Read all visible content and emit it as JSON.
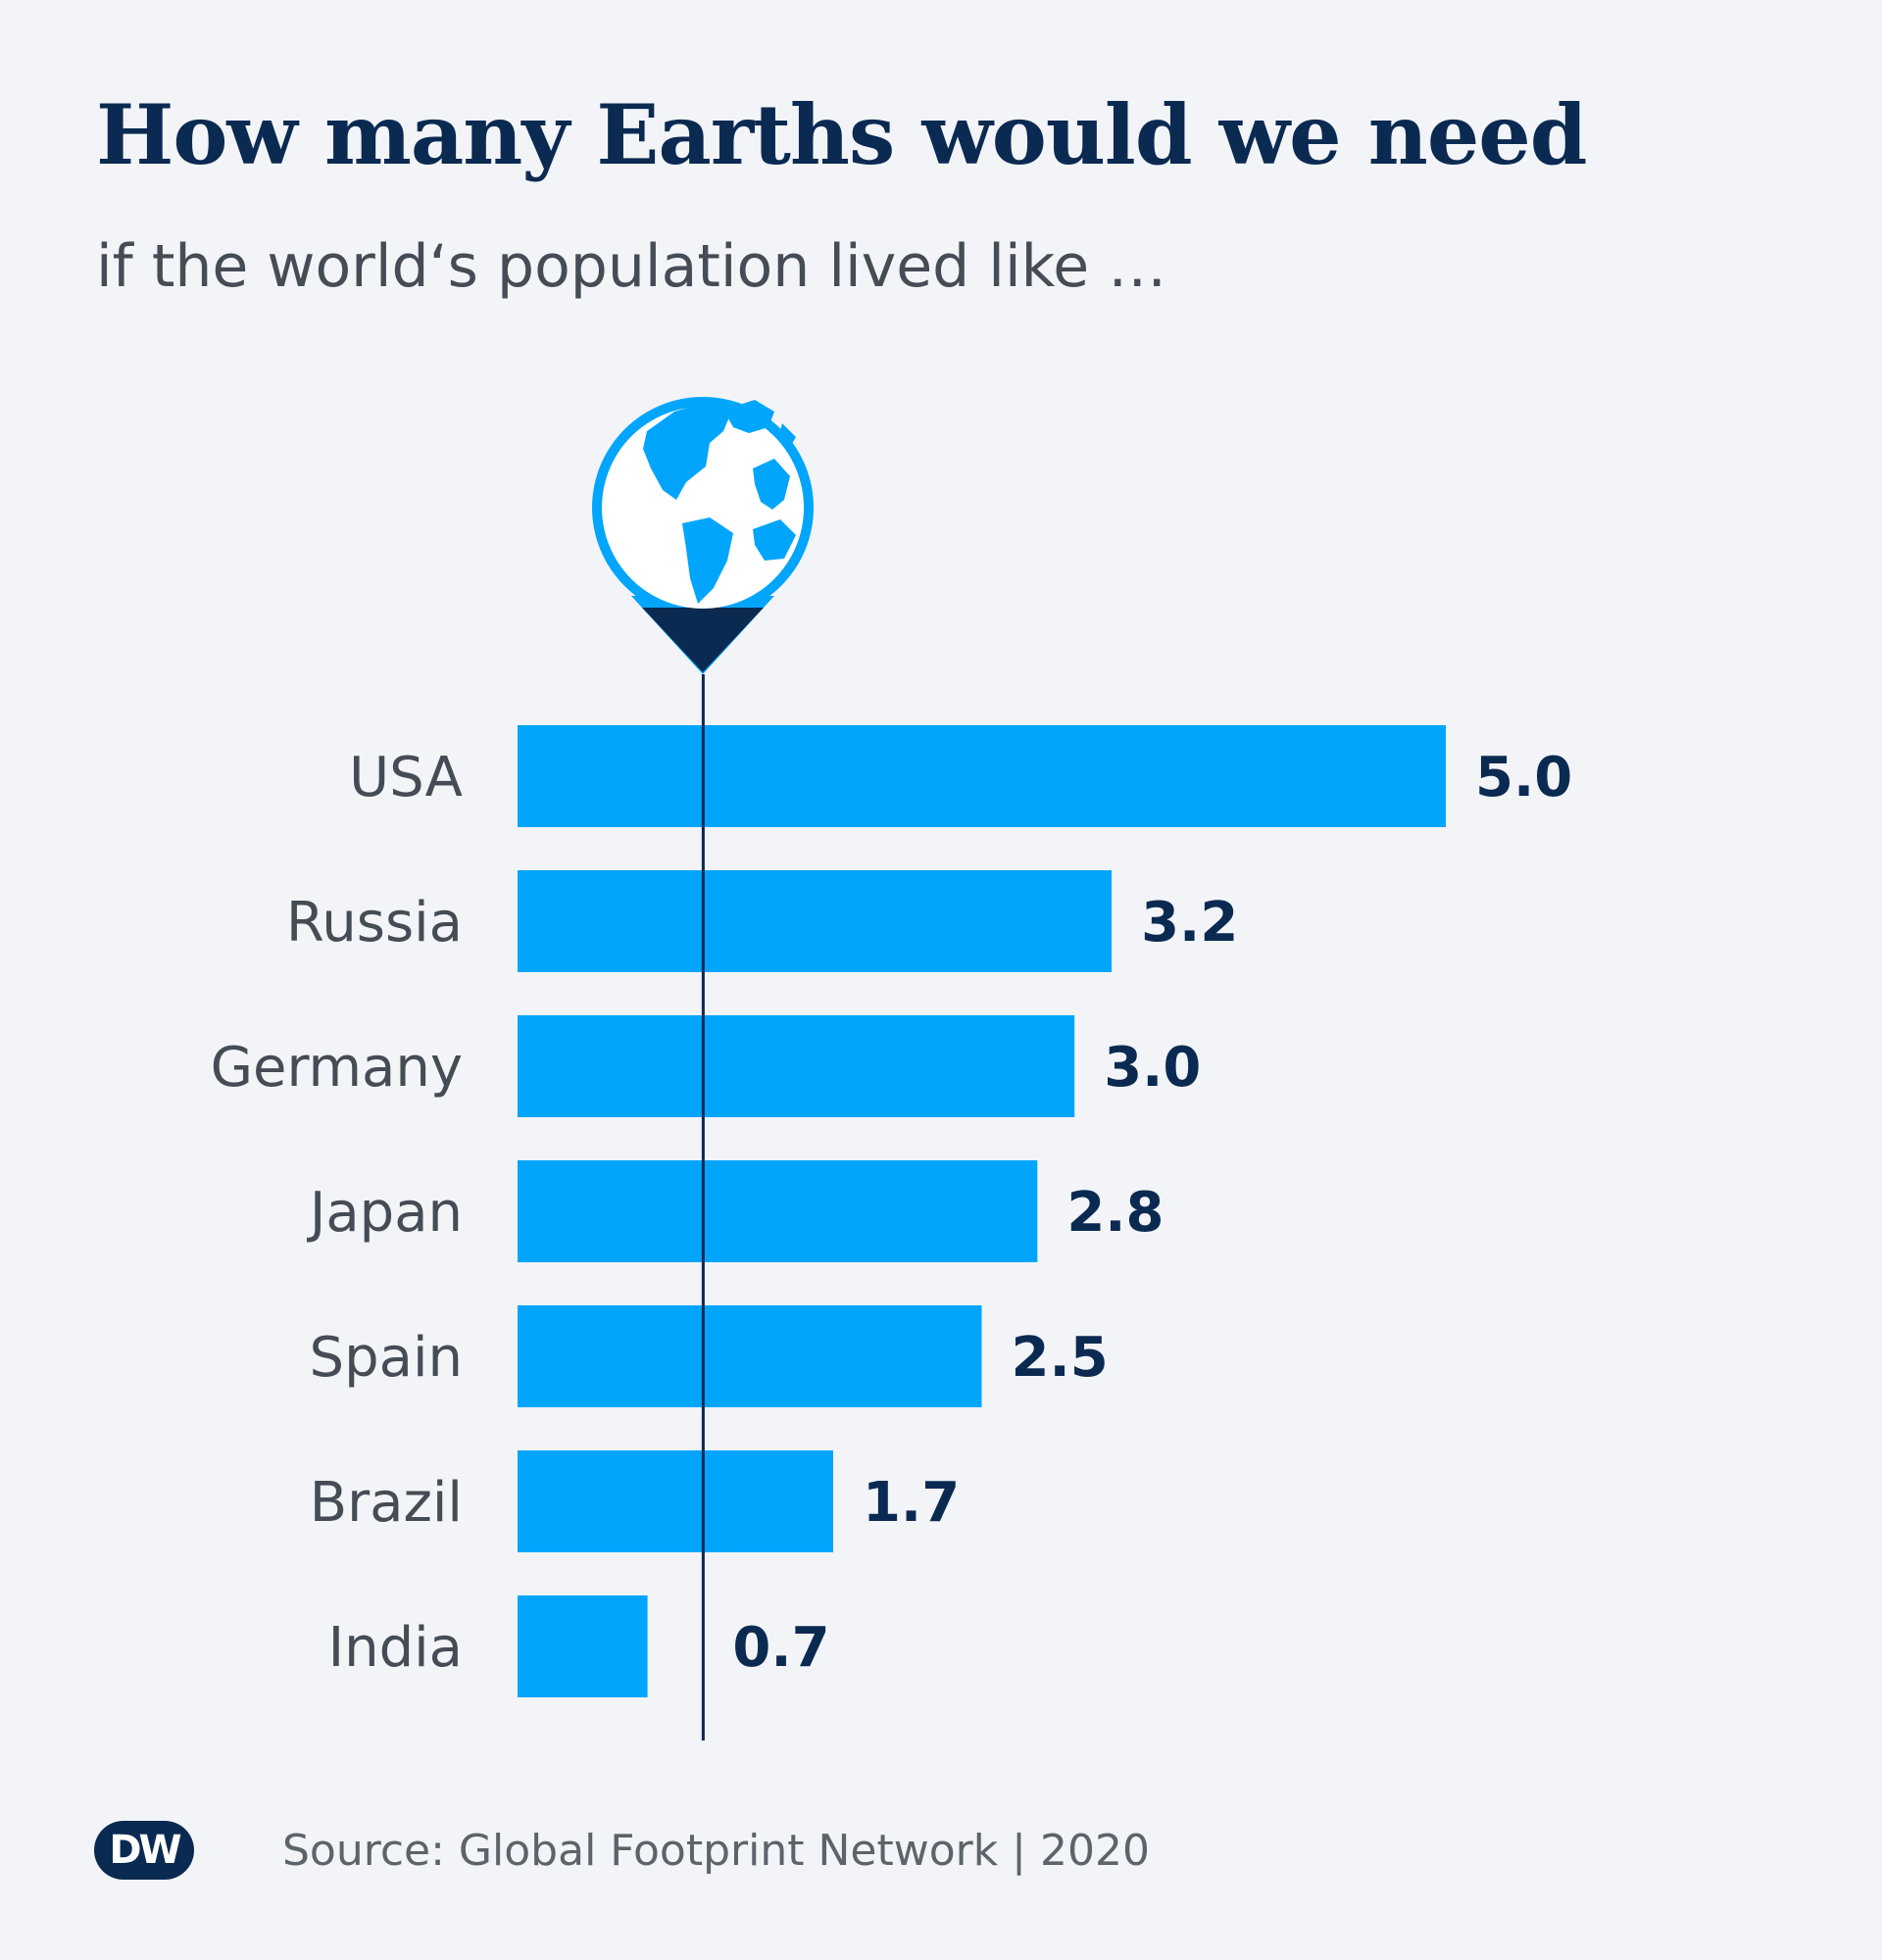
{
  "header": {
    "title": "How many Earths would we need",
    "subtitle": "if the world‘s population lived like …"
  },
  "footer": {
    "logo_text": "DW",
    "source": "Source: Global Footprint Network | 2020"
  },
  "icons": {
    "marker": "globe-pin-icon"
  },
  "colors": {
    "background": "#f2f4f7",
    "bar": "#02a5fc",
    "value_text": "#0b2a52",
    "category_text": "#454c55",
    "reference_line": "#0b2a52",
    "globe_land": "#02a5fc",
    "pin_tip": "#0b2a52"
  },
  "chart_data": {
    "type": "bar",
    "orientation": "horizontal",
    "title": "How many Earths would we need",
    "subtitle": "if the world‘s population lived like …",
    "categories": [
      "USA",
      "Russia",
      "Germany",
      "Japan",
      "Spain",
      "Brazil",
      "India"
    ],
    "values": [
      5.0,
      3.2,
      3.0,
      2.8,
      2.5,
      1.7,
      0.7
    ],
    "value_labels": [
      "5.0",
      "3.2",
      "3.0",
      "2.8",
      "2.5",
      "1.7",
      "0.7"
    ],
    "reference_value": 1,
    "xlim": [
      0,
      5
    ],
    "grid": false,
    "legend": "none",
    "source": "Source: Global Footprint Network | 2020"
  }
}
